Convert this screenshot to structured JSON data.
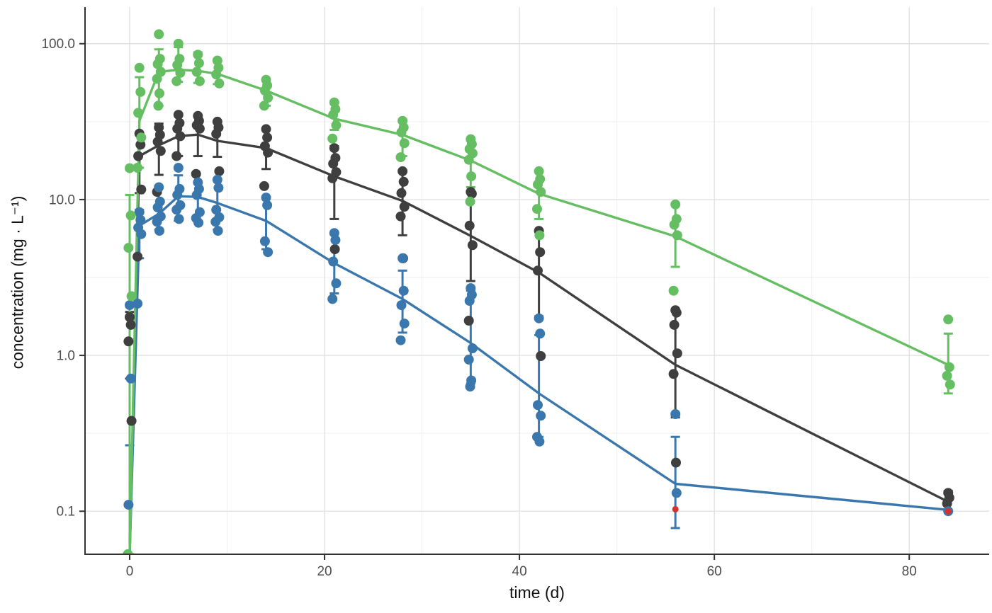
{
  "chart_data": {
    "type": "line",
    "title": "",
    "xlabel": "time (d)",
    "ylabel": "concentration (mg · L⁻¹)",
    "grid": "major+minor",
    "legend": "none",
    "x_axis": {
      "ticks": [
        0,
        20,
        40,
        60,
        80
      ],
      "minor_ticks": [
        10,
        30,
        50,
        70
      ],
      "range": [
        -4.58,
        88.2
      ]
    },
    "y_axis": {
      "scale": "log10",
      "tick_labels": [
        "100.0",
        "10.0",
        "1.0",
        "0.1"
      ],
      "tick_values": [
        100,
        10,
        1,
        0.1
      ],
      "minor_values": [
        31.623,
        3.1623,
        0.31623
      ],
      "log_range": [
        -1.276,
        2.235
      ]
    },
    "series": [
      {
        "id": "grey",
        "color": "#3f3f3f",
        "means": [
          {
            "t": 0,
            "y": 0.053,
            "lo": 0.71,
            "hi": 1.9
          },
          {
            "t": 1,
            "y": 19,
            "lo": 11,
            "hi": 26.5
          },
          {
            "t": 3,
            "y": 22.3,
            "lo": 14.4,
            "hi": 30.7
          },
          {
            "t": 5,
            "y": 25.5,
            "lo": 19,
            "hi": 35
          },
          {
            "t": 7,
            "y": 26.1,
            "lo": 19,
            "hi": 34.8
          },
          {
            "t": 9,
            "y": 23.8,
            "lo": 18.8,
            "hi": 31.6
          },
          {
            "t": 14,
            "y": 21.4,
            "lo": 15.7,
            "hi": 28.3
          },
          {
            "t": 21,
            "y": 14.1,
            "lo": 7.5,
            "hi": 22
          },
          {
            "t": 28,
            "y": 9.8,
            "lo": 5.9,
            "hi": 15.2
          },
          {
            "t": 35,
            "y": 5.85,
            "lo": 3.0,
            "hi": 11.2
          },
          {
            "t": 42,
            "y": 3.4,
            "lo": 1.78,
            "hi": 6.3
          },
          {
            "t": 56,
            "y": 0.87,
            "lo": 0.4,
            "hi": 1.93
          },
          {
            "t": 84,
            "y": 0.115,
            "lo": 0.1,
            "hi": 0.135
          }
        ],
        "points": [
          {
            "t": 0,
            "y": 1.76
          },
          {
            "t": 0,
            "y": 1.57
          },
          {
            "t": 0,
            "y": 1.23
          },
          {
            "t": 0,
            "y": 0.38
          },
          {
            "t": 1,
            "y": 26.5
          },
          {
            "t": 1,
            "y": 22.5
          },
          {
            "t": 1,
            "y": 19
          },
          {
            "t": 1,
            "y": 11.6
          },
          {
            "t": 1,
            "y": 4.3
          },
          {
            "t": 3,
            "y": 29
          },
          {
            "t": 3,
            "y": 26
          },
          {
            "t": 3,
            "y": 23.5
          },
          {
            "t": 3,
            "y": 20.5
          },
          {
            "t": 3,
            "y": 11.2
          },
          {
            "t": 5,
            "y": 35
          },
          {
            "t": 5,
            "y": 31
          },
          {
            "t": 5,
            "y": 28.5
          },
          {
            "t": 5,
            "y": 25.5
          },
          {
            "t": 5,
            "y": 19
          },
          {
            "t": 7,
            "y": 34.4
          },
          {
            "t": 7,
            "y": 32
          },
          {
            "t": 7,
            "y": 30
          },
          {
            "t": 7,
            "y": 28.5
          },
          {
            "t": 7,
            "y": 14.6
          },
          {
            "t": 9,
            "y": 31.6
          },
          {
            "t": 9,
            "y": 29
          },
          {
            "t": 9,
            "y": 26.4
          },
          {
            "t": 9,
            "y": 15.2
          },
          {
            "t": 14,
            "y": 28.3
          },
          {
            "t": 14,
            "y": 25
          },
          {
            "t": 14,
            "y": 22
          },
          {
            "t": 14,
            "y": 20
          },
          {
            "t": 14,
            "y": 12.2
          },
          {
            "t": 21,
            "y": 21.4
          },
          {
            "t": 21,
            "y": 18.5
          },
          {
            "t": 21,
            "y": 17
          },
          {
            "t": 21,
            "y": 15
          },
          {
            "t": 21,
            "y": 13.7
          },
          {
            "t": 21,
            "y": 4.8
          },
          {
            "t": 28,
            "y": 15.2
          },
          {
            "t": 28,
            "y": 13
          },
          {
            "t": 28,
            "y": 11
          },
          {
            "t": 28,
            "y": 9
          },
          {
            "t": 28,
            "y": 7.8
          },
          {
            "t": 28,
            "y": 4.2
          },
          {
            "t": 35,
            "y": 11.2
          },
          {
            "t": 35,
            "y": 10.9
          },
          {
            "t": 35,
            "y": 6.8
          },
          {
            "t": 35,
            "y": 5.1
          },
          {
            "t": 35,
            "y": 1.67
          },
          {
            "t": 42,
            "y": 6.3
          },
          {
            "t": 42,
            "y": 4.6
          },
          {
            "t": 42,
            "y": 3.5
          },
          {
            "t": 42,
            "y": 0.99
          },
          {
            "t": 56,
            "y": 1.95
          },
          {
            "t": 56,
            "y": 1.88
          },
          {
            "t": 56,
            "y": 1.57
          },
          {
            "t": 56,
            "y": 1.03
          },
          {
            "t": 56,
            "y": 0.76
          },
          {
            "t": 56,
            "y": 0.205
          },
          {
            "t": 84,
            "y": 0.131
          },
          {
            "t": 84,
            "y": 0.122
          },
          {
            "t": 84,
            "y": 0.112
          }
        ]
      },
      {
        "id": "blue",
        "color": "#3a77ad",
        "means": [
          {
            "t": 0,
            "y": 0.053,
            "lo": 0.265,
            "hi": 2.1
          },
          {
            "t": 1,
            "y": 6.8,
            "lo": 4.2,
            "hi": 8.6
          },
          {
            "t": 3,
            "y": 8.1,
            "lo": 6.4,
            "hi": 12
          },
          {
            "t": 5,
            "y": 10.5,
            "lo": 7.3,
            "hi": 14.3
          },
          {
            "t": 7,
            "y": 10.4,
            "lo": 7.2,
            "hi": 13
          },
          {
            "t": 9,
            "y": 9.5,
            "lo": 6.4,
            "hi": 13.4
          },
          {
            "t": 14,
            "y": 7.3,
            "lo": 4.8,
            "hi": 10.3
          },
          {
            "t": 21,
            "y": 3.9,
            "lo": 2.5,
            "hi": 6.0
          },
          {
            "t": 28,
            "y": 2.3,
            "lo": 1.4,
            "hi": 3.5
          },
          {
            "t": 35,
            "y": 1.2,
            "lo": 0.66,
            "hi": 2.6
          },
          {
            "t": 42,
            "y": 0.57,
            "lo": 0.3,
            "hi": 1.35
          },
          {
            "t": 56,
            "y": 0.15,
            "lo": 0.078,
            "hi": 0.3
          },
          {
            "t": 84,
            "y": 0.102,
            "lo": null,
            "hi": null
          }
        ],
        "points": [
          {
            "t": 0,
            "y": 2.1
          },
          {
            "t": 0,
            "y": 0.71
          },
          {
            "t": 0,
            "y": 0.11
          },
          {
            "t": 1,
            "y": 8.3
          },
          {
            "t": 1,
            "y": 7.4
          },
          {
            "t": 1,
            "y": 6.6
          },
          {
            "t": 1,
            "y": 6.0
          },
          {
            "t": 1,
            "y": 2.15
          },
          {
            "t": 3,
            "y": 12
          },
          {
            "t": 3,
            "y": 9.7
          },
          {
            "t": 3,
            "y": 8.9
          },
          {
            "t": 3,
            "y": 7.8
          },
          {
            "t": 3,
            "y": 7.2
          },
          {
            "t": 3,
            "y": 6.3
          },
          {
            "t": 5,
            "y": 16
          },
          {
            "t": 5,
            "y": 11.7
          },
          {
            "t": 5,
            "y": 10.7
          },
          {
            "t": 5,
            "y": 9.2
          },
          {
            "t": 5,
            "y": 8.6
          },
          {
            "t": 5,
            "y": 7.5
          },
          {
            "t": 7,
            "y": 12.9
          },
          {
            "t": 7,
            "y": 11.7
          },
          {
            "t": 7,
            "y": 10.7
          },
          {
            "t": 7,
            "y": 8.3
          },
          {
            "t": 7,
            "y": 7.6
          },
          {
            "t": 7,
            "y": 7.1
          },
          {
            "t": 9,
            "y": 13.4
          },
          {
            "t": 9,
            "y": 11.9
          },
          {
            "t": 9,
            "y": 8.6
          },
          {
            "t": 9,
            "y": 7.7
          },
          {
            "t": 9,
            "y": 7.2
          },
          {
            "t": 9,
            "y": 6.3
          },
          {
            "t": 14,
            "y": 10.3
          },
          {
            "t": 14,
            "y": 9.2
          },
          {
            "t": 14,
            "y": 5.4
          },
          {
            "t": 14,
            "y": 4.6
          },
          {
            "t": 21,
            "y": 6.1
          },
          {
            "t": 21,
            "y": 5.5
          },
          {
            "t": 21,
            "y": 4.0
          },
          {
            "t": 21,
            "y": 2.9
          },
          {
            "t": 21,
            "y": 2.3
          },
          {
            "t": 28,
            "y": 4.2
          },
          {
            "t": 28,
            "y": 2.6
          },
          {
            "t": 28,
            "y": 2.1
          },
          {
            "t": 28,
            "y": 1.6
          },
          {
            "t": 28,
            "y": 1.25
          },
          {
            "t": 35,
            "y": 2.7
          },
          {
            "t": 35,
            "y": 2.45
          },
          {
            "t": 35,
            "y": 2.24
          },
          {
            "t": 35,
            "y": 1.11
          },
          {
            "t": 35,
            "y": 0.94
          },
          {
            "t": 35,
            "y": 0.69
          },
          {
            "t": 35,
            "y": 0.63
          },
          {
            "t": 42,
            "y": 1.73
          },
          {
            "t": 42,
            "y": 1.38
          },
          {
            "t": 42,
            "y": 0.48
          },
          {
            "t": 42,
            "y": 0.41
          },
          {
            "t": 42,
            "y": 0.3
          },
          {
            "t": 42,
            "y": 0.28
          },
          {
            "t": 56,
            "y": 0.42
          },
          {
            "t": 56,
            "y": 0.131
          },
          {
            "t": 84,
            "y": 0.1
          }
        ]
      },
      {
        "id": "green",
        "color": "#66be63",
        "means": [
          {
            "t": 0,
            "y": 0.053,
            "lo": 0.053,
            "hi": 10.7
          },
          {
            "t": 1,
            "y": 32,
            "lo": 16,
            "hi": 61
          },
          {
            "t": 3,
            "y": 66,
            "lo": 40,
            "hi": 92
          },
          {
            "t": 5,
            "y": 68,
            "lo": 57,
            "hi": 95
          },
          {
            "t": 7,
            "y": 67,
            "lo": 56,
            "hi": 88
          },
          {
            "t": 9,
            "y": 64,
            "lo": 55,
            "hi": 79
          },
          {
            "t": 14,
            "y": 50,
            "lo": 40,
            "hi": 59
          },
          {
            "t": 21,
            "y": 33,
            "lo": 28,
            "hi": 42
          },
          {
            "t": 28,
            "y": 26,
            "lo": 19,
            "hi": 32
          },
          {
            "t": 35,
            "y": 17.8,
            "lo": 12,
            "hi": 24
          },
          {
            "t": 42,
            "y": 10.9,
            "lo": 7.5,
            "hi": 15
          },
          {
            "t": 56,
            "y": 5.8,
            "lo": 3.7,
            "hi": 9.3
          },
          {
            "t": 84,
            "y": 0.87,
            "lo": 0.57,
            "hi": 1.38
          }
        ],
        "points": [
          {
            "t": 0,
            "y": 15.9
          },
          {
            "t": 0,
            "y": 7.9
          },
          {
            "t": 0,
            "y": 4.9
          },
          {
            "t": 0,
            "y": 2.4
          },
          {
            "t": 0,
            "y": 0.053
          },
          {
            "t": 1,
            "y": 70
          },
          {
            "t": 1,
            "y": 49
          },
          {
            "t": 1,
            "y": 36
          },
          {
            "t": 1,
            "y": 25
          },
          {
            "t": 1,
            "y": 16
          },
          {
            "t": 3,
            "y": 115
          },
          {
            "t": 3,
            "y": 80
          },
          {
            "t": 3,
            "y": 74
          },
          {
            "t": 3,
            "y": 66
          },
          {
            "t": 3,
            "y": 59.5
          },
          {
            "t": 3,
            "y": 48
          },
          {
            "t": 3,
            "y": 40
          },
          {
            "t": 5,
            "y": 100
          },
          {
            "t": 5,
            "y": 80
          },
          {
            "t": 5,
            "y": 73
          },
          {
            "t": 5,
            "y": 65
          },
          {
            "t": 5,
            "y": 57.5
          },
          {
            "t": 7,
            "y": 85
          },
          {
            "t": 7,
            "y": 75
          },
          {
            "t": 7,
            "y": 66
          },
          {
            "t": 7,
            "y": 57.5
          },
          {
            "t": 9,
            "y": 78
          },
          {
            "t": 9,
            "y": 70
          },
          {
            "t": 9,
            "y": 63.5
          },
          {
            "t": 9,
            "y": 55.6
          },
          {
            "t": 14,
            "y": 58.7
          },
          {
            "t": 14,
            "y": 54
          },
          {
            "t": 14,
            "y": 50
          },
          {
            "t": 14,
            "y": 45
          },
          {
            "t": 14,
            "y": 40
          },
          {
            "t": 21,
            "y": 42
          },
          {
            "t": 21,
            "y": 38
          },
          {
            "t": 21,
            "y": 35
          },
          {
            "t": 21,
            "y": 30
          },
          {
            "t": 21,
            "y": 24.6
          },
          {
            "t": 28,
            "y": 32
          },
          {
            "t": 28,
            "y": 29
          },
          {
            "t": 28,
            "y": 27
          },
          {
            "t": 28,
            "y": 23
          },
          {
            "t": 28,
            "y": 18.7
          },
          {
            "t": 35,
            "y": 24.4
          },
          {
            "t": 35,
            "y": 22.7
          },
          {
            "t": 35,
            "y": 21.1
          },
          {
            "t": 35,
            "y": 19.8
          },
          {
            "t": 35,
            "y": 18
          },
          {
            "t": 35,
            "y": 14.1
          },
          {
            "t": 35,
            "y": 9.7
          },
          {
            "t": 42,
            "y": 15.2
          },
          {
            "t": 42,
            "y": 13.5
          },
          {
            "t": 42,
            "y": 12.5
          },
          {
            "t": 42,
            "y": 11.2
          },
          {
            "t": 42,
            "y": 8.7
          },
          {
            "t": 42,
            "y": 5.9
          },
          {
            "t": 56,
            "y": 9.3
          },
          {
            "t": 56,
            "y": 7.5
          },
          {
            "t": 56,
            "y": 6.9
          },
          {
            "t": 56,
            "y": 5.9
          },
          {
            "t": 56,
            "y": 2.6
          },
          {
            "t": 84,
            "y": 1.7
          },
          {
            "t": 84,
            "y": 0.84
          },
          {
            "t": 84,
            "y": 0.74
          },
          {
            "t": 84,
            "y": 0.65
          }
        ]
      }
    ],
    "flagged_points": {
      "color": "#d7312e",
      "points": [
        {
          "t": 56,
          "y": 0.103
        },
        {
          "t": 84,
          "y": 0.1
        }
      ]
    }
  },
  "style": {
    "axis_line_color": "#333333",
    "tick_label_color": "#4d4d4d",
    "major_grid_color": "#e2e2e2",
    "minor_grid_color": "#efefef",
    "background": "#ffffff"
  }
}
